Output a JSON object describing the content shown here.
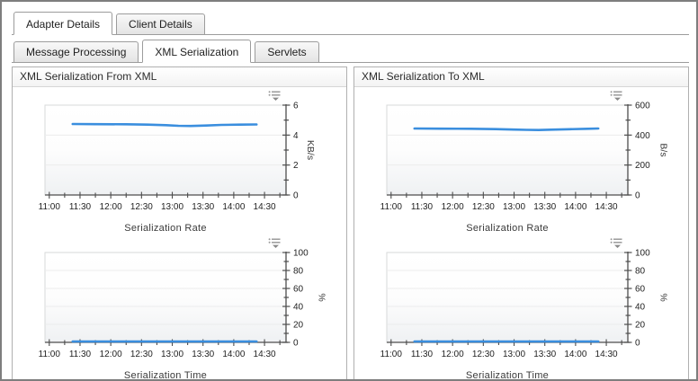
{
  "tabs_primary": [
    {
      "label": "Adapter Details",
      "active": true
    },
    {
      "label": "Client Details",
      "active": false
    }
  ],
  "tabs_secondary": [
    {
      "label": "Message Processing",
      "active": false
    },
    {
      "label": "XML Serialization",
      "active": true
    },
    {
      "label": "Servlets",
      "active": false
    }
  ],
  "panels": [
    {
      "title": "XML Serialization From XML"
    },
    {
      "title": "XML Serialization To XML"
    }
  ],
  "icons": {
    "chart_menu": "legend-menu-dropdown"
  },
  "colors": {
    "series": "#3a8ede",
    "axis": "#4d4d4d",
    "grid": "#ececec",
    "plot_border": "#d7d9da",
    "plot_bg_top": "#ffffff",
    "plot_bg_bottom": "#eff1f3",
    "icon": "#959595"
  },
  "chart_data": [
    {
      "type": "line",
      "panel": "XML Serialization From XML",
      "xlabel": "Serialization Rate",
      "ylabel": "KB/s",
      "ylim": [
        0,
        6
      ],
      "ytick_major": 2,
      "ytick_minor": 1,
      "xlim_hours": [
        10.93,
        14.85
      ],
      "xtick_hours": [
        11,
        11.5,
        12,
        12.5,
        13,
        13.5,
        14,
        14.5
      ],
      "xtick_labels": [
        "11:00",
        "11:30",
        "12:00",
        "12:30",
        "13:00",
        "13:30",
        "14:00",
        "14:30"
      ],
      "xtick_minor_step": 0.25,
      "series": [
        {
          "x": [
            11.38,
            11.75,
            12.25,
            12.6,
            12.9,
            13.1,
            13.3,
            13.55,
            13.8,
            14.1,
            14.37
          ],
          "y": [
            4.74,
            4.73,
            4.72,
            4.7,
            4.66,
            4.62,
            4.61,
            4.64,
            4.68,
            4.7,
            4.71
          ]
        }
      ]
    },
    {
      "type": "line",
      "panel": "XML Serialization From XML",
      "xlabel": "Serialization Time",
      "ylabel": "%",
      "ylim": [
        0,
        100
      ],
      "ytick_major": 20,
      "ytick_minor": 10,
      "xlim_hours": [
        10.93,
        14.85
      ],
      "xtick_hours": [
        11,
        11.5,
        12,
        12.5,
        13,
        13.5,
        14,
        14.5
      ],
      "xtick_labels": [
        "11:00",
        "11:30",
        "12:00",
        "12:30",
        "13:00",
        "13:30",
        "14:00",
        "14:30"
      ],
      "xtick_minor_step": 0.25,
      "series": [
        {
          "x": [
            11.38,
            12.0,
            12.5,
            13.0,
            13.5,
            14.0,
            14.37
          ],
          "y": [
            1,
            1,
            1,
            1,
            1,
            1,
            1
          ]
        }
      ]
    },
    {
      "type": "line",
      "panel": "XML Serialization To XML",
      "xlabel": "Serialization Rate",
      "ylabel": "B/s",
      "ylim": [
        0,
        600
      ],
      "ytick_major": 200,
      "ytick_minor": 100,
      "xlim_hours": [
        10.93,
        14.85
      ],
      "xtick_hours": [
        11,
        11.5,
        12,
        12.5,
        13,
        13.5,
        14,
        14.5
      ],
      "xtick_labels": [
        "11:00",
        "11:30",
        "12:00",
        "12:30",
        "13:00",
        "13:30",
        "14:00",
        "14:30"
      ],
      "xtick_minor_step": 0.25,
      "series": [
        {
          "x": [
            11.38,
            11.8,
            12.3,
            12.7,
            13.0,
            13.2,
            13.4,
            13.6,
            13.9,
            14.2,
            14.37
          ],
          "y": [
            444,
            443,
            442,
            440,
            437,
            435,
            434,
            436,
            439,
            442,
            444
          ]
        }
      ]
    },
    {
      "type": "line",
      "panel": "XML Serialization To XML",
      "xlabel": "Serialization Time",
      "ylabel": "%",
      "ylim": [
        0,
        100
      ],
      "ytick_major": 20,
      "ytick_minor": 10,
      "xlim_hours": [
        10.93,
        14.85
      ],
      "xtick_hours": [
        11,
        11.5,
        12,
        12.5,
        13,
        13.5,
        14,
        14.5
      ],
      "xtick_labels": [
        "11:00",
        "11:30",
        "12:00",
        "12:30",
        "13:00",
        "13:30",
        "14:00",
        "14:30"
      ],
      "xtick_minor_step": 0.25,
      "series": [
        {
          "x": [
            11.38,
            12.0,
            12.5,
            13.0,
            13.5,
            14.0,
            14.37
          ],
          "y": [
            1,
            1,
            1,
            1,
            1,
            1,
            1
          ]
        }
      ]
    }
  ]
}
